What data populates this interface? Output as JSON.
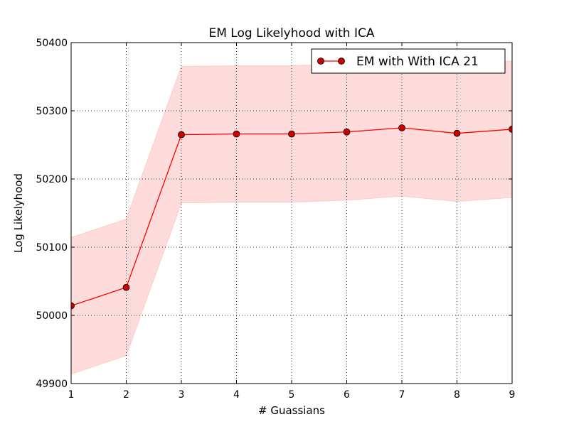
{
  "chart_data": {
    "type": "line",
    "title": "EM Log Likelyhood with ICA",
    "xlabel": "# Guassians",
    "ylabel": "Log Likelyhood",
    "xlim": [
      1,
      9
    ],
    "ylim": [
      49900,
      50400
    ],
    "xticks": [
      "1",
      "2",
      "3",
      "4",
      "5",
      "6",
      "7",
      "8",
      "9"
    ],
    "yticks": [
      "49900",
      "50000",
      "50100",
      "50200",
      "50300",
      "50400"
    ],
    "grid": true,
    "legend_position": "top-right",
    "series": [
      {
        "name": "EM with With ICA 21",
        "color": "#ff0000",
        "marker_color": "#cc0000",
        "band_color": "#ffdcdc",
        "x": [
          1,
          2,
          3,
          4,
          5,
          6,
          7,
          8,
          9
        ],
        "y": [
          50014,
          50041,
          50265,
          50266,
          50266,
          50269,
          50275,
          50267,
          50273
        ],
        "lower": [
          49914,
          49941,
          50165,
          50166,
          50166,
          50169,
          50175,
          50167,
          50173
        ],
        "upper": [
          50114,
          50141,
          50365,
          50366,
          50366,
          50369,
          50375,
          50367,
          50373
        ]
      }
    ]
  }
}
